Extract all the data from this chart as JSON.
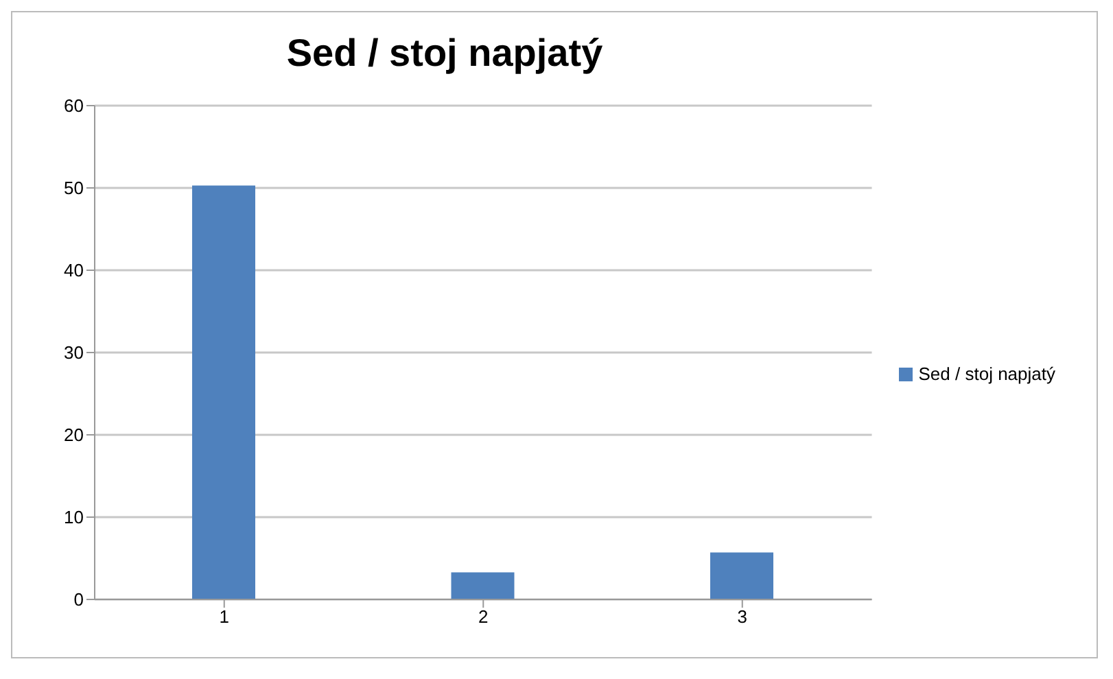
{
  "chart_data": {
    "type": "bar",
    "title": "Sed / stoj napjatý",
    "categories": [
      "1",
      "2",
      "3"
    ],
    "series": [
      {
        "name": "Sed / stoj napjatý",
        "color": "#4f81bd",
        "values": [
          50.3,
          3.3,
          5.7
        ]
      }
    ],
    "ylim": [
      0,
      60
    ],
    "yticks": [
      0,
      10,
      20,
      30,
      40,
      50,
      60
    ],
    "grid": "y",
    "legend": "right"
  }
}
